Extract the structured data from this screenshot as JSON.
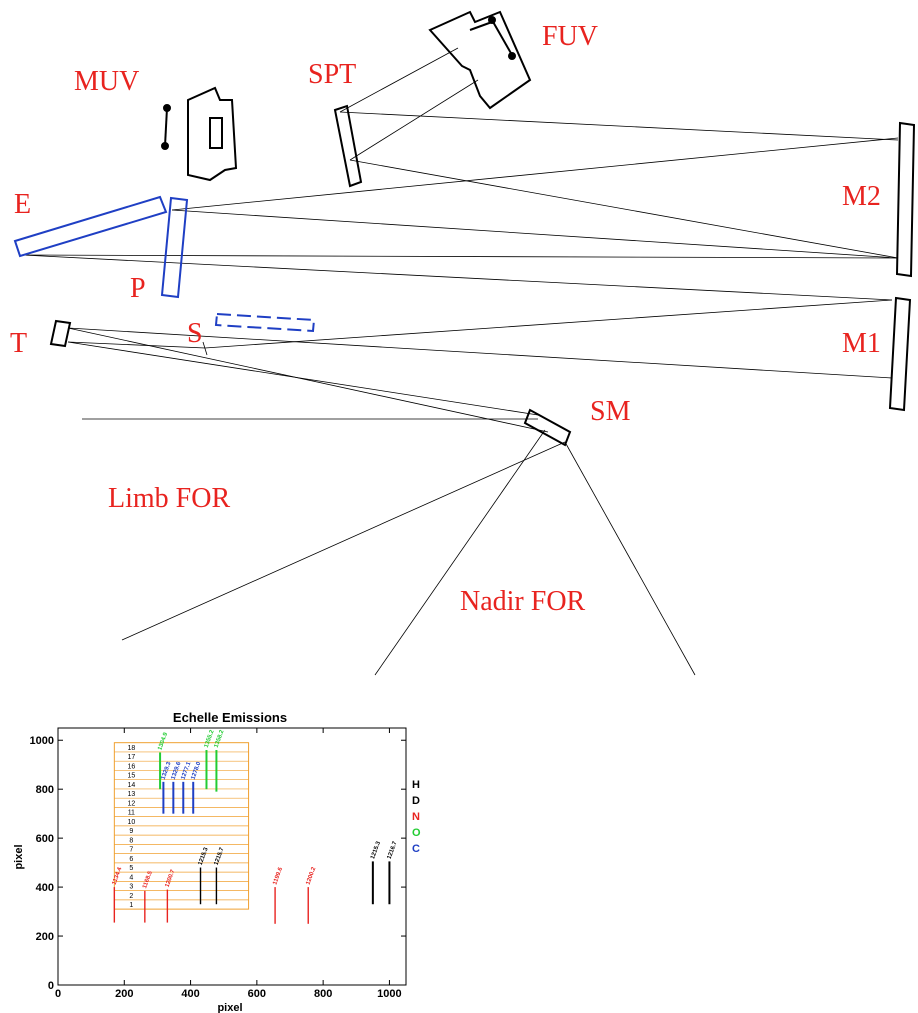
{
  "labels": {
    "fuv": "FUV",
    "muv": "MUV",
    "spt": "SPT",
    "e": "E",
    "m2": "M2",
    "p": "P",
    "t": "T",
    "s": "S",
    "m1": "M1",
    "sm": "SM",
    "limb_for": "Limb FOR",
    "nadir_for": "Nadir FOR"
  },
  "colors": {
    "label": "#e8231f",
    "blue_component": "#1f3fc4",
    "grid_box": "#f0a030",
    "H": "#000000",
    "D": "#000000",
    "N": "#e8231f",
    "O": "#22cc33",
    "C": "#1f3fc4"
  },
  "chart_data": {
    "type": "line",
    "title": "Echelle Emissions",
    "xlabel": "pixel",
    "ylabel": "pixel",
    "xlim": [
      0,
      1050
    ],
    "ylim": [
      0,
      1050
    ],
    "xticks": [
      0,
      200,
      400,
      600,
      800,
      1000
    ],
    "yticks": [
      0,
      200,
      400,
      600,
      800,
      1000
    ],
    "grid": false,
    "legend_position": "right",
    "legend": [
      "H",
      "D",
      "N",
      "O",
      "C"
    ],
    "orders_box": {
      "x": [
        170,
        575
      ],
      "y": [
        310,
        990
      ]
    },
    "orders": [
      "1",
      "2",
      "3",
      "4",
      "5",
      "6",
      "7",
      "8",
      "9",
      "10",
      "11",
      "12",
      "13",
      "14",
      "15",
      "16",
      "17",
      "18"
    ],
    "lines": [
      {
        "species": "N",
        "label": "1134.4",
        "x": 170,
        "y0": 255,
        "y1": 400
      },
      {
        "species": "N",
        "label": "1168.5",
        "x": 262,
        "y0": 255,
        "y1": 385
      },
      {
        "species": "N",
        "label": "1200.7",
        "x": 330,
        "y0": 255,
        "y1": 390
      },
      {
        "species": "D",
        "label": "1215.3",
        "x": 430,
        "y0": 330,
        "y1": 480
      },
      {
        "species": "D",
        "label": "1215.7",
        "x": 478,
        "y0": 330,
        "y1": 480
      },
      {
        "species": "N",
        "label": "1199.6",
        "x": 655,
        "y0": 250,
        "y1": 400
      },
      {
        "species": "N",
        "label": "1200.2",
        "x": 755,
        "y0": 250,
        "y1": 400
      },
      {
        "species": "H",
        "label": "1215.3",
        "x": 950,
        "y0": 330,
        "y1": 505
      },
      {
        "species": "H",
        "label": "1216.7",
        "x": 1000,
        "y0": 330,
        "y1": 505
      },
      {
        "species": "O",
        "label": "1304.9",
        "x": 308,
        "y0": 800,
        "y1": 950
      },
      {
        "species": "O",
        "label": "1355.2",
        "x": 448,
        "y0": 800,
        "y1": 960
      },
      {
        "species": "O",
        "label": "1358.2",
        "x": 478,
        "y0": 790,
        "y1": 960
      },
      {
        "species": "C",
        "label": "1329.3",
        "x": 318,
        "y0": 700,
        "y1": 830
      },
      {
        "species": "C",
        "label": "1329.6",
        "x": 348,
        "y0": 700,
        "y1": 830
      },
      {
        "species": "C",
        "label": "1277.1",
        "x": 378,
        "y0": 700,
        "y1": 830
      },
      {
        "species": "C",
        "label": "1278.0",
        "x": 408,
        "y0": 700,
        "y1": 830
      }
    ]
  }
}
